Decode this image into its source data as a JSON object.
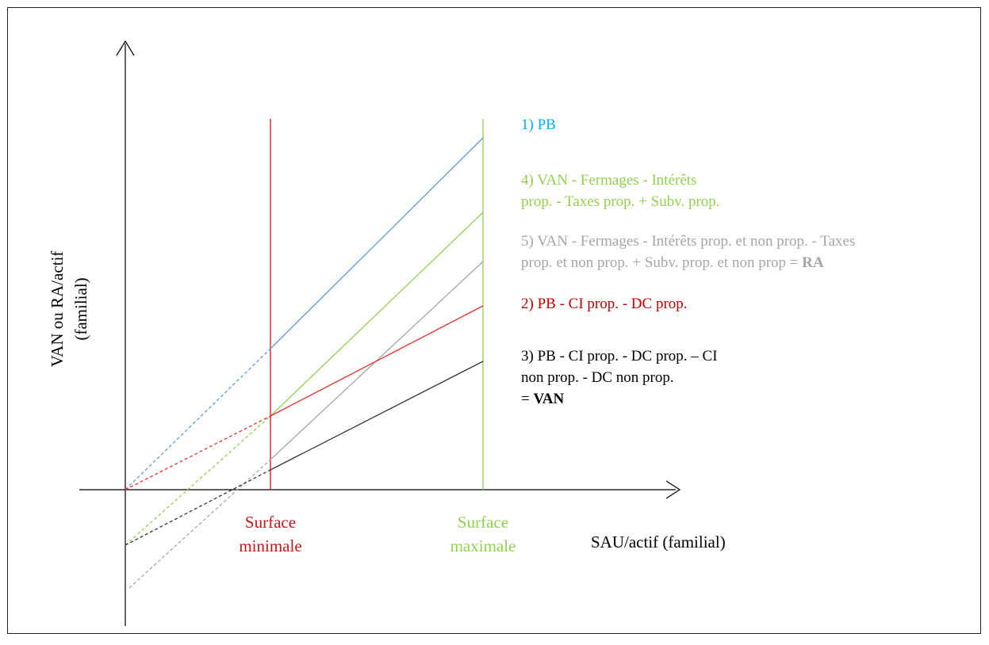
{
  "chart_data": {
    "type": "line",
    "title": "",
    "xlabel": "SAU/actif (familial)",
    "ylabel_lines": [
      "VAN ou RA/actif",
      "(familial)"
    ],
    "x_markers": [
      {
        "label_lines": [
          "Surface",
          "minimale"
        ],
        "color": "#c0161c"
      },
      {
        "label_lines": [
          "Surface",
          "maximale"
        ],
        "color": "#92d050"
      }
    ],
    "series": [
      {
        "name": "1) PB",
        "color": "#5b9bd5",
        "label_color": "#00b0f0",
        "label_lines": [
          [
            {
              "t": "1) PB"
            }
          ]
        ]
      },
      {
        "name": "2) PB - CI prop. - DC prop.",
        "color": "#e03530",
        "label_color": "#c00000",
        "label_lines": [
          [
            {
              "t": "2) PB - CI prop. - DC prop."
            }
          ]
        ]
      },
      {
        "name": "3) PB - CI prop. - DC prop. – CI non prop. - DC non prop. = VAN",
        "color": "#333333",
        "label_color": "#000000",
        "label_lines": [
          [
            {
              "t": "3) PB - CI prop. - DC prop. – CI"
            }
          ],
          [
            {
              "t": "non prop. - DC non prop."
            }
          ],
          [
            {
              "t": "= "
            },
            {
              "t": "VAN",
              "b": true
            }
          ]
        ]
      },
      {
        "name": "4) VAN - Fermages - Intérêts prop. - Taxes prop. + Subv. prop.",
        "color": "#92d050",
        "label_color": "#92d050",
        "label_lines": [
          [
            {
              "t": "4) VAN - Fermages - Intérêts"
            }
          ],
          [
            {
              "t": "prop. - Taxes prop. + Subv. prop."
            }
          ]
        ]
      },
      {
        "name": "5) VAN - Fermages - Intérêts prop. et non prop. - Taxes prop. et non prop. + Subv. prop. et non prop = RA",
        "color": "#a6a6a6",
        "label_color": "#a6a6a6",
        "label_lines": [
          [
            {
              "t": "5) VAN - Fermages - Intérêts prop. et non prop. - Taxes"
            }
          ],
          [
            {
              "t": "prop. et non prop. + Subv. prop. et non prop = "
            },
            {
              "t": "RA",
              "b": true
            }
          ]
        ]
      }
    ],
    "segment_styles": {
      "before_surface_minimale": "dashed",
      "after_surface_minimale": "solid"
    },
    "grid": false,
    "legend": "right"
  }
}
